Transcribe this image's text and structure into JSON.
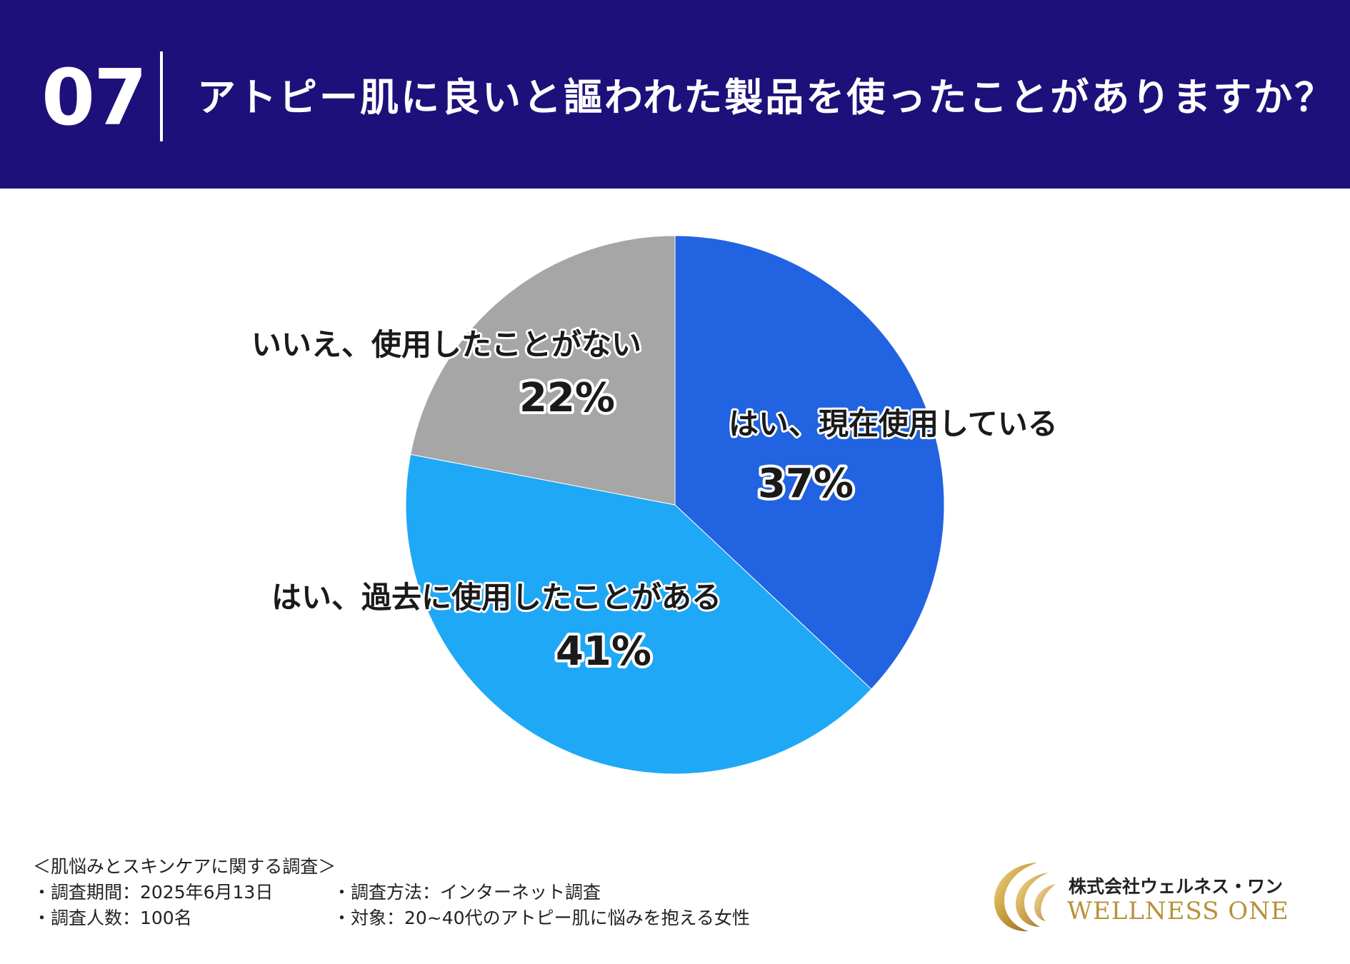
{
  "header": {
    "number": "07",
    "title": "アトピー肌に良いと謳われた製品を使ったことがありますか？",
    "background_color": "#1e107a"
  },
  "chart_data": {
    "type": "pie",
    "title": "アトピー肌に良いと謳われた製品を使ったことがありますか？",
    "start": "12 o'clock, clockwise",
    "slices": [
      {
        "label": "はい、現在使用している",
        "value": 37,
        "value_label": "37%",
        "color": "#2163e0"
      },
      {
        "label": "はい、過去に使用したことがある",
        "value": 41,
        "value_label": "41%",
        "color": "#1fa8f6"
      },
      {
        "label": "いいえ、使用したことがない",
        "value": 22,
        "value_label": "22%",
        "color": "#a6a6a6"
      }
    ]
  },
  "footer": {
    "survey_name": "＜肌悩みとスキンケアに関する調査＞",
    "period": "・調査期間：2025年6月13日",
    "method": "・調査方法：インターネット調査",
    "respondents": "・調査人数：100名",
    "target": "・対象：20~40代のアトピー肌に悩みを抱える女性"
  },
  "logo": {
    "company_jp": "株式会社ウェルネス・ワン",
    "company_en": "WELLNESS ONE",
    "icon": "gold-crescent-logo-icon",
    "color": "#b8923a"
  }
}
